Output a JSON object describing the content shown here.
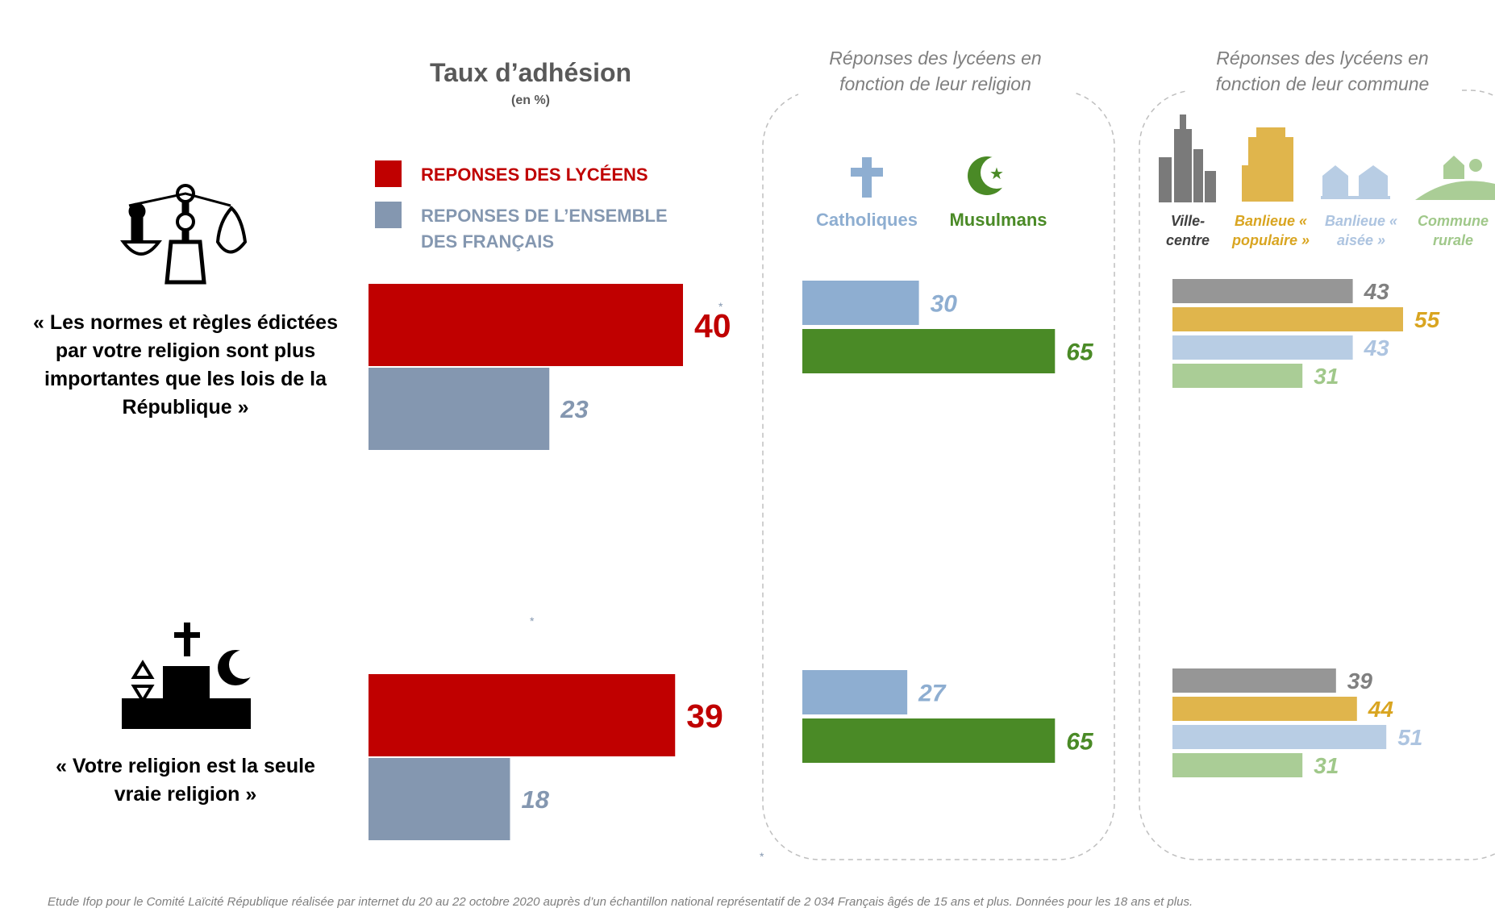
{
  "chart_data": [
    {
      "type": "bar",
      "title": "Taux d’adhésion",
      "subtitle": "(en %)",
      "categories": [
        "« Les normes et règles édictées par votre religion sont plus importantes  que les lois de la République »",
        "« Votre religion est la seule vraie religion »"
      ],
      "annotation": "*",
      "series": [
        {
          "name": "REPONSES DES LYCÉENS",
          "color": "#c00000",
          "label_color": "#c00000",
          "values": [
            40,
            39
          ]
        },
        {
          "name": "REPONSES DE L’ENSEMBLE DES FRANÇAIS",
          "color": "#8497b0",
          "label_color": "#8497b0",
          "values": [
            23,
            18
          ]
        }
      ]
    },
    {
      "type": "bar",
      "title": "Réponses des lycéens en fonction de leur religion",
      "series": [
        {
          "name": "Catholiques",
          "color": "#8eaed1",
          "label_color": "#8eaed1",
          "values": [
            30,
            27
          ]
        },
        {
          "name": "Musulmans",
          "color": "#4a8a26",
          "label_color": "#4a8a26",
          "values": [
            65,
            65
          ]
        }
      ]
    },
    {
      "type": "bar",
      "title": "Réponses des lycéens en fonction de leur commune",
      "series": [
        {
          "name": "Ville-centre",
          "color": "#969696",
          "label_color": "#808080",
          "values": [
            43,
            39
          ]
        },
        {
          "name": "Banlieue « populaire »",
          "color": "#e0b54c",
          "label_color": "#d9a521",
          "values": [
            55,
            44
          ]
        },
        {
          "name": "Banlieue « aisée »",
          "color": "#b8cde4",
          "label_color": "#adc4e0",
          "values": [
            43,
            51
          ]
        },
        {
          "name": "Commune rurale",
          "color": "#aacd96",
          "label_color": "#a0c88a",
          "values": [
            31,
            31
          ]
        }
      ]
    }
  ],
  "footnote": "Etude Ifop pour le Comité Laïcité République réalisée par internet du 20 au 22 octobre 2020 auprès d’un échantillon national représentatif  de 2 034 Français âgés de 15 ans et plus. Données pour les 18 ans et plus."
}
